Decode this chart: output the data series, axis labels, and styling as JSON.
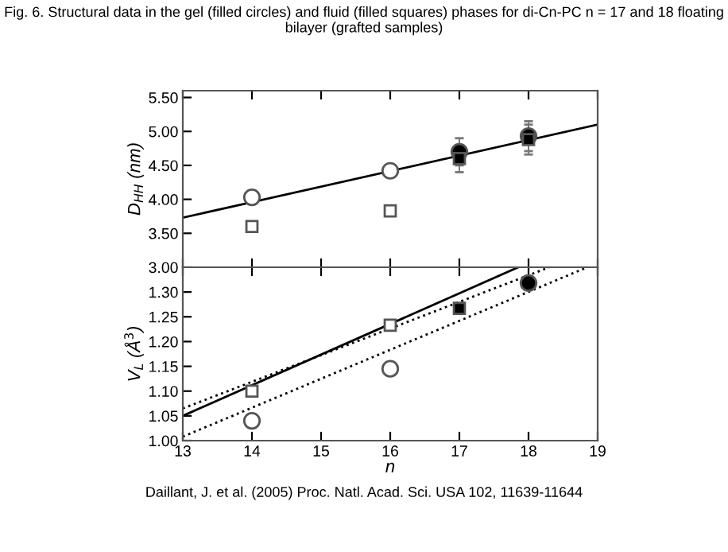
{
  "chart_data": [
    {
      "type": "scatter",
      "title": "Fig. 6. Structural data in the gel (filled circles) and fluid (filled squares) phases for di-Cn-PC n = 17 and 18 floating bilayer (grafted samples)",
      "ylabel": "D$_{HH}$ (nm)",
      "xlim": [
        13,
        19
      ],
      "xticks": [
        13,
        14,
        15,
        16,
        17,
        18,
        19
      ],
      "ylim": [
        3.0,
        5.6
      ],
      "yticks": [
        {
          "value": 3.0,
          "label": "3.00"
        },
        {
          "value": 3.5,
          "label": "3.50"
        },
        {
          "value": 4.0,
          "label": "4.00"
        },
        {
          "value": 4.5,
          "label": "4.50"
        },
        {
          "value": 5.0,
          "label": "5.00"
        },
        {
          "value": 5.5,
          "label": "5.50"
        }
      ],
      "tick_labels": "y",
      "grid": false,
      "legend": false,
      "series": [
        {
          "marker": "circle",
          "color": "#ffffff",
          "x": [
            14,
            16
          ],
          "values": [
            4.03,
            4.42
          ]
        },
        {
          "marker": "square",
          "color": "#ffffff",
          "x": [
            14,
            16
          ],
          "values": [
            3.6,
            3.83
          ]
        },
        {
          "marker": "circle",
          "color": "#000000",
          "x": [
            17,
            18
          ],
          "values": [
            4.7,
            4.93
          ],
          "errors": [
            0.2,
            0.22
          ]
        },
        {
          "marker": "square",
          "color": "#000000",
          "x": [
            17,
            18
          ],
          "values": [
            4.6,
            4.88
          ],
          "errors": [
            0.2,
            0.22
          ]
        },
        {
          "type": "line",
          "line_style": "solid",
          "color": "#000000",
          "x": [
            13,
            19
          ],
          "values": [
            3.73,
            5.1
          ]
        }
      ]
    },
    {
      "type": "scatter",
      "xlabel": "n",
      "ylabel": "V$_{L}$ (Å$^{3}$)",
      "xlim": [
        13,
        19
      ],
      "xticks": [
        13,
        14,
        15,
        16,
        17,
        18,
        19
      ],
      "ylim": [
        1.0,
        1.35
      ],
      "yticks": [
        {
          "value": 1.0,
          "label": "1.00"
        },
        {
          "value": 1.05,
          "label": "1.05"
        },
        {
          "value": 1.1,
          "label": "1.10"
        },
        {
          "value": 1.15,
          "label": "1.15"
        },
        {
          "value": 1.2,
          "label": "1.20"
        },
        {
          "value": 1.25,
          "label": "1.25"
        },
        {
          "value": 1.3,
          "label": "1.30"
        }
      ],
      "grid": false,
      "legend": false,
      "annotations": [
        "Daillant, J. et al. (2005) Proc. Natl. Acad. Sci. USA 102, 11639-11644"
      ],
      "series": [
        {
          "marker": "circle",
          "color": "#ffffff",
          "x": [
            14,
            16
          ],
          "values": [
            1.04,
            1.145
          ]
        },
        {
          "marker": "square",
          "color": "#ffffff",
          "x": [
            14,
            16
          ],
          "values": [
            1.1,
            1.233
          ]
        },
        {
          "marker": "square",
          "color": "#000000",
          "x": [
            17
          ],
          "values": [
            1.267
          ]
        },
        {
          "marker": "circle",
          "color": "#000000",
          "x": [
            18
          ],
          "values": [
            1.318
          ]
        },
        {
          "type": "line",
          "line_style": "solid",
          "color": "#000000",
          "x": [
            13,
            17.85
          ],
          "values": [
            1.05,
            1.35
          ]
        },
        {
          "type": "line",
          "line_style": "dotted",
          "color": "#000000",
          "x": [
            13,
            18.3
          ],
          "values": [
            1.065,
            1.35
          ]
        },
        {
          "type": "line",
          "line_style": "dotted",
          "color": "#000000",
          "x": [
            13,
            18.85
          ],
          "values": [
            1.008,
            1.35
          ]
        }
      ]
    }
  ]
}
